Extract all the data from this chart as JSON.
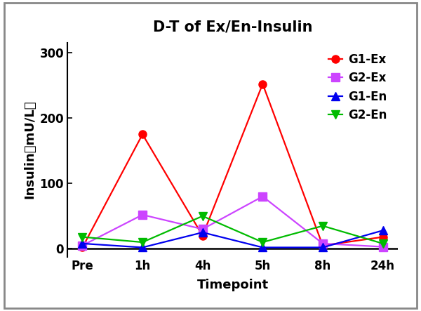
{
  "title": "D-T of Ex/En-Insulin",
  "xlabel": "Timepoint",
  "ylabel": "Insulin（mU/L）",
  "x_labels": [
    "Pre",
    "1h",
    "4h",
    "5h",
    "8h",
    "24h"
  ],
  "x_values": [
    0,
    1,
    2,
    3,
    4,
    5
  ],
  "series": [
    {
      "label": "G1-Ex",
      "values": [
        2,
        175,
        20,
        252,
        5,
        18
      ],
      "color": "#FF0000",
      "marker": "o",
      "markersize": 8
    },
    {
      "label": "G2-Ex",
      "values": [
        5,
        52,
        30,
        80,
        8,
        3
      ],
      "color": "#CC44FF",
      "marker": "s",
      "markersize": 8
    },
    {
      "label": "G1-En",
      "values": [
        8,
        2,
        25,
        2,
        2,
        28
      ],
      "color": "#0000EE",
      "marker": "^",
      "markersize": 8
    },
    {
      "label": "G2-En",
      "values": [
        18,
        10,
        50,
        10,
        35,
        8
      ],
      "color": "#00BB00",
      "marker": "v",
      "markersize": 8
    }
  ],
  "ylim": [
    -12,
    315
  ],
  "yticks": [
    0,
    100,
    200,
    300
  ],
  "background_color": "#ffffff",
  "plot_bg_color": "#ffffff",
  "border_color": "#000000",
  "title_fontsize": 15,
  "label_fontsize": 13,
  "tick_fontsize": 12,
  "legend_fontsize": 12,
  "linewidth": 1.6
}
